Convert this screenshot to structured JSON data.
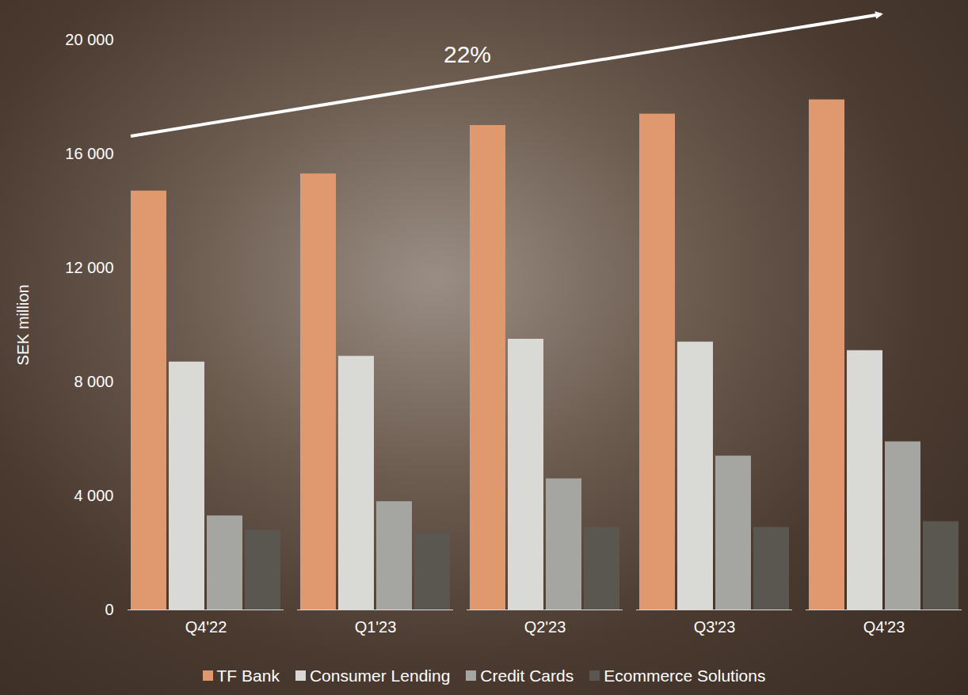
{
  "chart_data": {
    "type": "bar",
    "annotation": "22%",
    "y_label": "SEK million",
    "categories": [
      "Q4'22",
      "Q1'23",
      "Q2'23",
      "Q3'23",
      "Q4'23"
    ],
    "series": [
      {
        "name": "TF Bank",
        "color": "#e0996e",
        "values": [
          14700,
          15300,
          17000,
          17400,
          17900
        ]
      },
      {
        "name": "Consumer Lending",
        "color": "#d9d9d6",
        "values": [
          8700,
          8900,
          9500,
          9400,
          9100
        ]
      },
      {
        "name": "Credit Cards",
        "color": "#a5a5a2",
        "values": [
          3300,
          3800,
          4600,
          5400,
          5900
        ]
      },
      {
        "name": "Ecommerce Solutions",
        "color": "#59574f",
        "values": [
          2800,
          2700,
          2900,
          2900,
          3100
        ]
      }
    ],
    "ylim": [
      0,
      20000
    ],
    "yticks": [
      0,
      {
        "value": 4000,
        "label": "4 000"
      },
      {
        "value": 8000,
        "label": "8 000"
      },
      {
        "value": 12000,
        "label": "12 000"
      },
      {
        "value": 16000,
        "label": "16 000"
      },
      {
        "value": 20000,
        "label": "20 000"
      }
    ],
    "grid": false,
    "legend": "bottom"
  }
}
